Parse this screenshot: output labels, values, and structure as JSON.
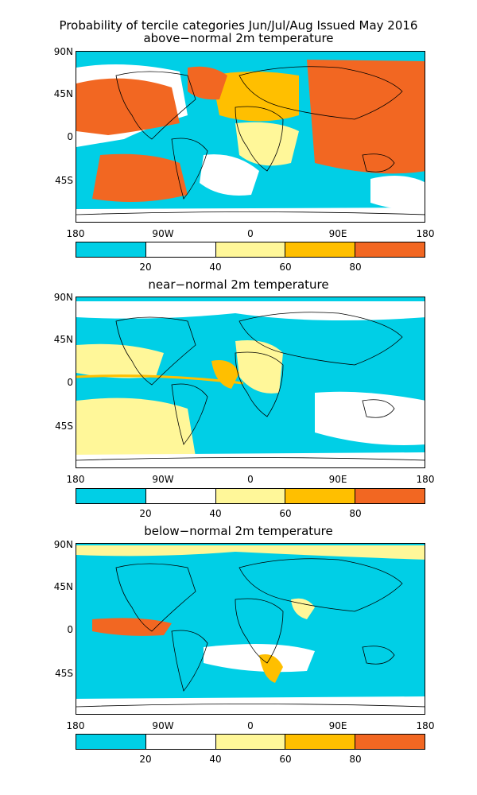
{
  "title_line1": "Probability of tercile categories Jun/Jul/Aug Issued May 2016",
  "lat_labels": [
    "90N",
    "45N",
    "0",
    "45S"
  ],
  "lon_labels": [
    "180",
    "90W",
    "0",
    "90E",
    "180"
  ],
  "panels": [
    {
      "title": "above−normal 2m temperature",
      "colorbar_labels": [
        "20",
        "40",
        "60",
        "80"
      ]
    },
    {
      "title": "near−normal 2m temperature",
      "colorbar_labels": [
        "20",
        "40",
        "60",
        "80"
      ]
    },
    {
      "title": "below−normal 2m temperature",
      "colorbar_labels": [
        "20",
        "40",
        "60",
        "80"
      ]
    }
  ],
  "colorbar_colors": [
    "#00cfe6",
    "#ffffff",
    "#fff799",
    "#ffbf00",
    "#f26722"
  ],
  "land_outline_color": "#000000"
}
